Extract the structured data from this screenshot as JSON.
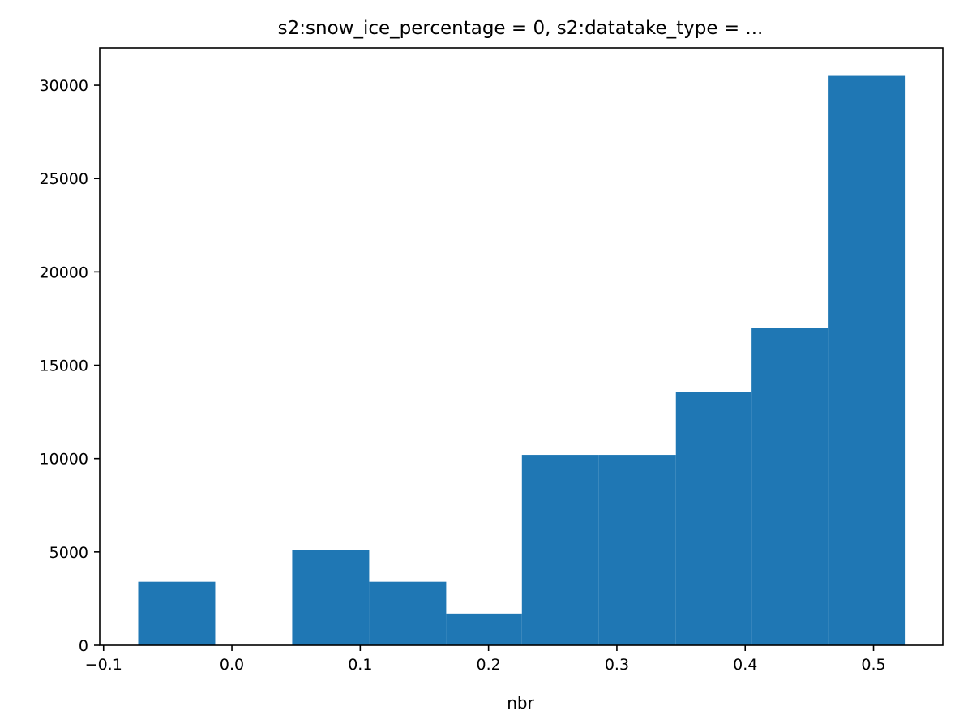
{
  "chart_data": {
    "type": "bar",
    "title": "s2:snow_ice_percentage = 0, s2:datatake_type = ...",
    "xlabel": "nbr",
    "ylabel": "",
    "xlim": [
      -0.103,
      0.554
    ],
    "ylim": [
      0,
      32000
    ],
    "x_ticks": [
      -0.1,
      0.0,
      0.1,
      0.2,
      0.3,
      0.4,
      0.5
    ],
    "x_tick_labels": [
      "−0.1",
      "0.0",
      "0.1",
      "0.2",
      "0.3",
      "0.4",
      "0.5"
    ],
    "y_ticks": [
      0,
      5000,
      10000,
      15000,
      20000,
      25000,
      30000
    ],
    "y_tick_labels": [
      "0",
      "5000",
      "10000",
      "15000",
      "20000",
      "25000",
      "30000"
    ],
    "grid": false,
    "bar_color": "#1f77b4",
    "bins": [
      {
        "x0": -0.073,
        "x1": -0.013,
        "count": 3400
      },
      {
        "x0": -0.013,
        "x1": 0.047,
        "count": 0
      },
      {
        "x0": 0.047,
        "x1": 0.107,
        "count": 5100
      },
      {
        "x0": 0.107,
        "x1": 0.167,
        "count": 3400
      },
      {
        "x0": 0.167,
        "x1": 0.226,
        "count": 1700
      },
      {
        "x0": 0.226,
        "x1": 0.286,
        "count": 10200
      },
      {
        "x0": 0.286,
        "x1": 0.346,
        "count": 10200
      },
      {
        "x0": 0.346,
        "x1": 0.405,
        "count": 13550
      },
      {
        "x0": 0.405,
        "x1": 0.465,
        "count": 17000
      },
      {
        "x0": 0.465,
        "x1": 0.525,
        "count": 30500
      }
    ]
  }
}
